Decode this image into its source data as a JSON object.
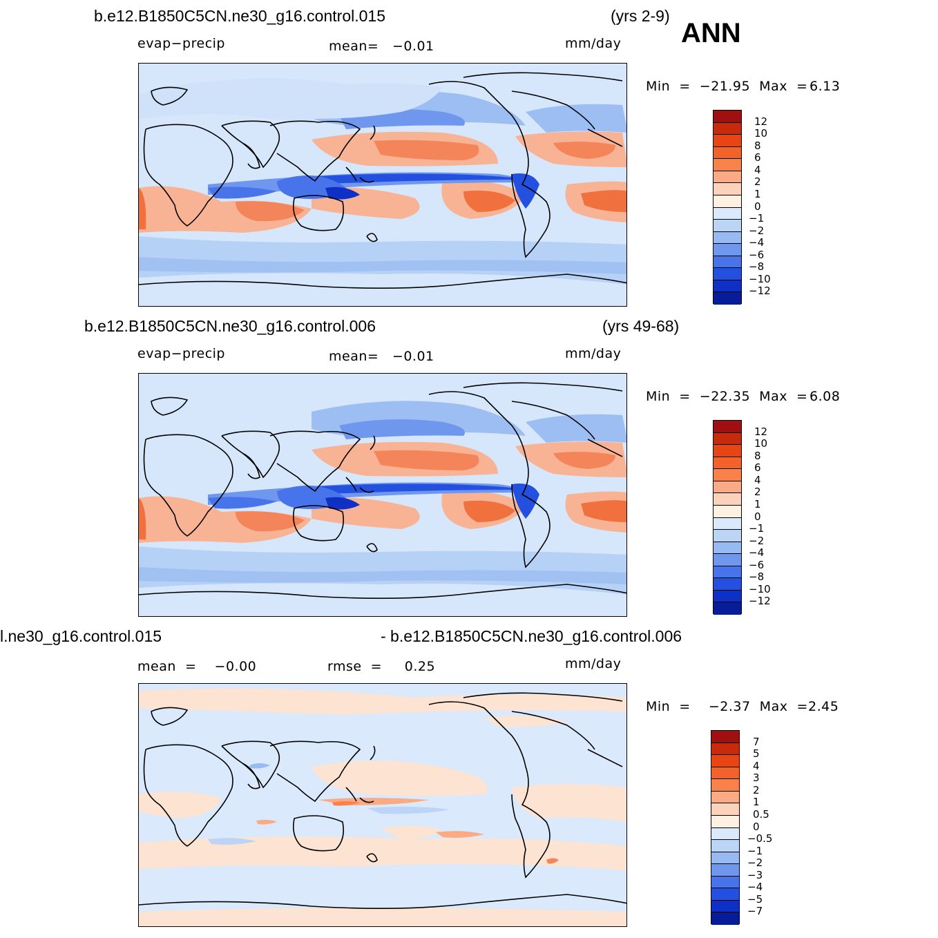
{
  "season": "ANN",
  "panels": [
    {
      "case": "b.e12.B1850C5CN.ne30_g16.control.015",
      "years": "(yrs 2-9)",
      "variable": "evap−precip",
      "stat1": "mean=   −0.01",
      "units": "mm/day",
      "minmax": "Min  =  −21.95  Max  =",
      "max_value": "6.13",
      "colorbar": {
        "labels": [
          "12",
          "10",
          "8",
          "6",
          "4",
          "2",
          "1",
          "0",
          "−1",
          "−2",
          "−4",
          "−6",
          "−8",
          "−10",
          "−12"
        ],
        "colors": [
          "#a01010",
          "#c82a0c",
          "#e84414",
          "#f2622a",
          "#f8824a",
          "#fbab84",
          "#fdd2bc",
          "#fff1e2",
          "#dae9fb",
          "#bcd5f7",
          "#98baf2",
          "#6f97ee",
          "#4774ea",
          "#2450e0",
          "#0e30c4",
          "#061c98"
        ]
      }
    },
    {
      "case": "b.e12.B1850C5CN.ne30_g16.control.006",
      "years": "(yrs 49-68)",
      "variable": "evap−precip",
      "stat1": "mean=   −0.01",
      "units": "mm/day",
      "minmax": "Min  =  −22.35  Max  =",
      "max_value": "6.08",
      "colorbar": {
        "labels": [
          "12",
          "10",
          "8",
          "6",
          "4",
          "2",
          "1",
          "0",
          "−1",
          "−2",
          "−4",
          "−6",
          "−8",
          "−10",
          "−12"
        ],
        "colors": [
          "#a01010",
          "#c82a0c",
          "#e84414",
          "#f2622a",
          "#f8824a",
          "#fbab84",
          "#fdd2bc",
          "#fff1e2",
          "#dae9fb",
          "#bcd5f7",
          "#98baf2",
          "#6f97ee",
          "#4774ea",
          "#2450e0",
          "#0e30c4",
          "#061c98"
        ]
      }
    },
    {
      "case": "l.ne30_g16.control.015",
      "years": "- b.e12.B1850C5CN.ne30_g16.control.006",
      "stat1": "mean  =    −0.00",
      "stat2": "rmse  =     0.25",
      "units": "mm/day",
      "minmax": "Min  =    −2.37  Max  =",
      "max_value": "2.45",
      "colorbar": {
        "labels": [
          "7",
          "5",
          "4",
          "3",
          "2",
          "1",
          "0.5",
          "0",
          "−0.5",
          "−1",
          "−2",
          "−3",
          "−4",
          "−5",
          "−7"
        ],
        "colors": [
          "#a01010",
          "#c82a0c",
          "#e84414",
          "#f2622a",
          "#f8824a",
          "#fbab84",
          "#fdd2bc",
          "#fff1e2",
          "#dae9fb",
          "#bcd5f7",
          "#98baf2",
          "#6f97ee",
          "#4774ea",
          "#2450e0",
          "#0e30c4",
          "#061c98"
        ]
      }
    }
  ]
}
